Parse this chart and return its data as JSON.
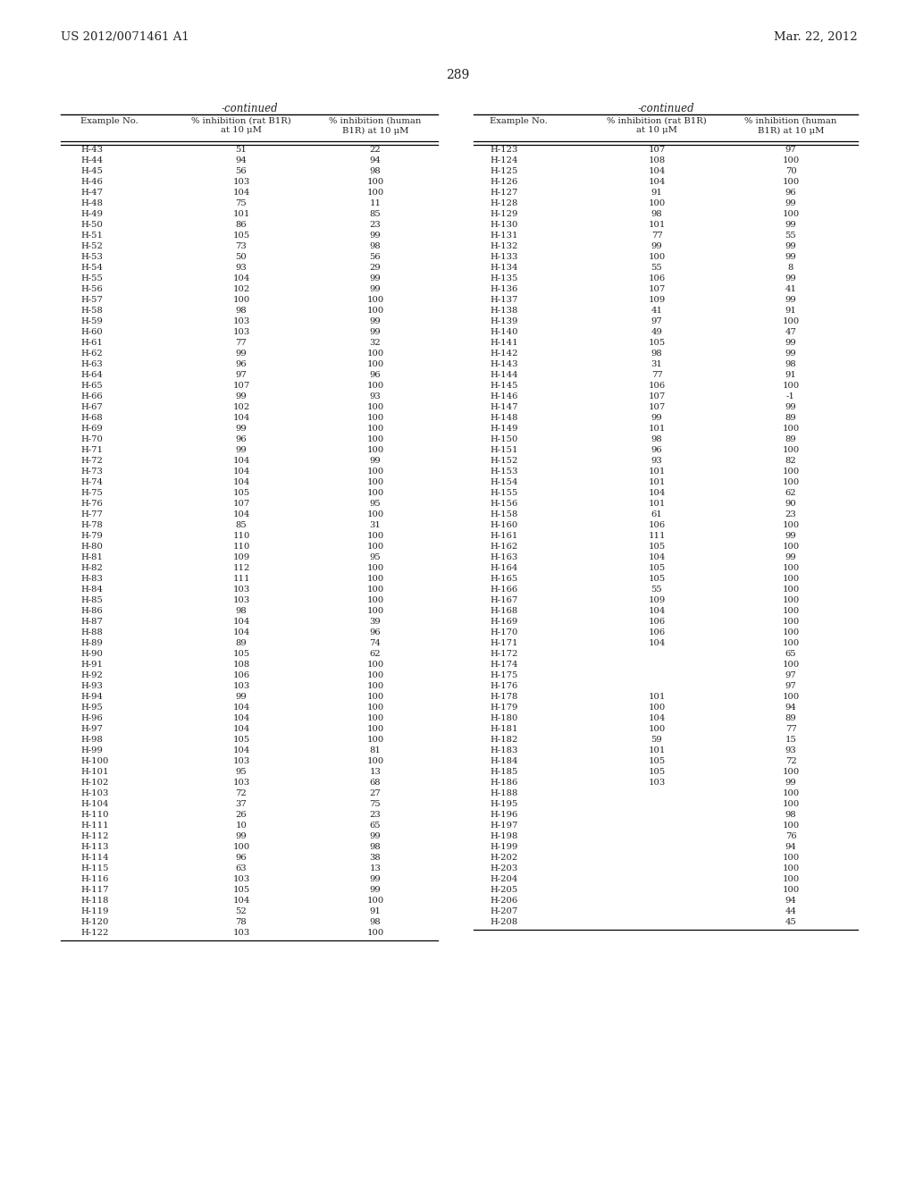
{
  "patent_left": "US 2012/0071461 A1",
  "patent_right": "Mar. 22, 2012",
  "page_number": "289",
  "continued_label": "-continued",
  "col_headers_line1": [
    "Example No.",
    "% inhibition (rat B1R)",
    "% inhibition (human"
  ],
  "col_headers_line2": [
    "",
    "at 10 μM",
    "B1R) at 10 μM"
  ],
  "left_table": [
    [
      "H-43",
      "51",
      "22"
    ],
    [
      "H-44",
      "94",
      "94"
    ],
    [
      "H-45",
      "56",
      "98"
    ],
    [
      "H-46",
      "103",
      "100"
    ],
    [
      "H-47",
      "104",
      "100"
    ],
    [
      "H-48",
      "75",
      "11"
    ],
    [
      "H-49",
      "101",
      "85"
    ],
    [
      "H-50",
      "86",
      "23"
    ],
    [
      "H-51",
      "105",
      "99"
    ],
    [
      "H-52",
      "73",
      "98"
    ],
    [
      "H-53",
      "50",
      "56"
    ],
    [
      "H-54",
      "93",
      "29"
    ],
    [
      "H-55",
      "104",
      "99"
    ],
    [
      "H-56",
      "102",
      "99"
    ],
    [
      "H-57",
      "100",
      "100"
    ],
    [
      "H-58",
      "98",
      "100"
    ],
    [
      "H-59",
      "103",
      "99"
    ],
    [
      "H-60",
      "103",
      "99"
    ],
    [
      "H-61",
      "77",
      "32"
    ],
    [
      "H-62",
      "99",
      "100"
    ],
    [
      "H-63",
      "96",
      "100"
    ],
    [
      "H-64",
      "97",
      "96"
    ],
    [
      "H-65",
      "107",
      "100"
    ],
    [
      "H-66",
      "99",
      "93"
    ],
    [
      "H-67",
      "102",
      "100"
    ],
    [
      "H-68",
      "104",
      "100"
    ],
    [
      "H-69",
      "99",
      "100"
    ],
    [
      "H-70",
      "96",
      "100"
    ],
    [
      "H-71",
      "99",
      "100"
    ],
    [
      "H-72",
      "104",
      "99"
    ],
    [
      "H-73",
      "104",
      "100"
    ],
    [
      "H-74",
      "104",
      "100"
    ],
    [
      "H-75",
      "105",
      "100"
    ],
    [
      "H-76",
      "107",
      "95"
    ],
    [
      "H-77",
      "104",
      "100"
    ],
    [
      "H-78",
      "85",
      "31"
    ],
    [
      "H-79",
      "110",
      "100"
    ],
    [
      "H-80",
      "110",
      "100"
    ],
    [
      "H-81",
      "109",
      "95"
    ],
    [
      "H-82",
      "112",
      "100"
    ],
    [
      "H-83",
      "111",
      "100"
    ],
    [
      "H-84",
      "103",
      "100"
    ],
    [
      "H-85",
      "103",
      "100"
    ],
    [
      "H-86",
      "98",
      "100"
    ],
    [
      "H-87",
      "104",
      "39"
    ],
    [
      "H-88",
      "104",
      "96"
    ],
    [
      "H-89",
      "89",
      "74"
    ],
    [
      "H-90",
      "105",
      "62"
    ],
    [
      "H-91",
      "108",
      "100"
    ],
    [
      "H-92",
      "106",
      "100"
    ],
    [
      "H-93",
      "103",
      "100"
    ],
    [
      "H-94",
      "99",
      "100"
    ],
    [
      "H-95",
      "104",
      "100"
    ],
    [
      "H-96",
      "104",
      "100"
    ],
    [
      "H-97",
      "104",
      "100"
    ],
    [
      "H-98",
      "105",
      "100"
    ],
    [
      "H-99",
      "104",
      "81"
    ],
    [
      "H-100",
      "103",
      "100"
    ],
    [
      "H-101",
      "95",
      "13"
    ],
    [
      "H-102",
      "103",
      "68"
    ],
    [
      "H-103",
      "72",
      "27"
    ],
    [
      "H-104",
      "37",
      "75"
    ],
    [
      "H-110",
      "26",
      "23"
    ],
    [
      "H-111",
      "10",
      "65"
    ],
    [
      "H-112",
      "99",
      "99"
    ],
    [
      "H-113",
      "100",
      "98"
    ],
    [
      "H-114",
      "96",
      "38"
    ],
    [
      "H-115",
      "63",
      "13"
    ],
    [
      "H-116",
      "103",
      "99"
    ],
    [
      "H-117",
      "105",
      "99"
    ],
    [
      "H-118",
      "104",
      "100"
    ],
    [
      "H-119",
      "52",
      "91"
    ],
    [
      "H-120",
      "78",
      "98"
    ],
    [
      "H-122",
      "103",
      "100"
    ]
  ],
  "right_table": [
    [
      "H-123",
      "107",
      "97"
    ],
    [
      "H-124",
      "108",
      "100"
    ],
    [
      "H-125",
      "104",
      "70"
    ],
    [
      "H-126",
      "104",
      "100"
    ],
    [
      "H-127",
      "91",
      "96"
    ],
    [
      "H-128",
      "100",
      "99"
    ],
    [
      "H-129",
      "98",
      "100"
    ],
    [
      "H-130",
      "101",
      "99"
    ],
    [
      "H-131",
      "77",
      "55"
    ],
    [
      "H-132",
      "99",
      "99"
    ],
    [
      "H-133",
      "100",
      "99"
    ],
    [
      "H-134",
      "55",
      "8"
    ],
    [
      "H-135",
      "106",
      "99"
    ],
    [
      "H-136",
      "107",
      "41"
    ],
    [
      "H-137",
      "109",
      "99"
    ],
    [
      "H-138",
      "41",
      "91"
    ],
    [
      "H-139",
      "97",
      "100"
    ],
    [
      "H-140",
      "49",
      "47"
    ],
    [
      "H-141",
      "105",
      "99"
    ],
    [
      "H-142",
      "98",
      "99"
    ],
    [
      "H-143",
      "31",
      "98"
    ],
    [
      "H-144",
      "77",
      "91"
    ],
    [
      "H-145",
      "106",
      "100"
    ],
    [
      "H-146",
      "107",
      "-1"
    ],
    [
      "H-147",
      "107",
      "99"
    ],
    [
      "H-148",
      "99",
      "89"
    ],
    [
      "H-149",
      "101",
      "100"
    ],
    [
      "H-150",
      "98",
      "89"
    ],
    [
      "H-151",
      "96",
      "100"
    ],
    [
      "H-152",
      "93",
      "82"
    ],
    [
      "H-153",
      "101",
      "100"
    ],
    [
      "H-154",
      "101",
      "100"
    ],
    [
      "H-155",
      "104",
      "62"
    ],
    [
      "H-156",
      "101",
      "90"
    ],
    [
      "H-158",
      "61",
      "23"
    ],
    [
      "H-160",
      "106",
      "100"
    ],
    [
      "H-161",
      "111",
      "99"
    ],
    [
      "H-162",
      "105",
      "100"
    ],
    [
      "H-163",
      "104",
      "99"
    ],
    [
      "H-164",
      "105",
      "100"
    ],
    [
      "H-165",
      "105",
      "100"
    ],
    [
      "H-166",
      "55",
      "100"
    ],
    [
      "H-167",
      "109",
      "100"
    ],
    [
      "H-168",
      "104",
      "100"
    ],
    [
      "H-169",
      "106",
      "100"
    ],
    [
      "H-170",
      "106",
      "100"
    ],
    [
      "H-171",
      "104",
      "100"
    ],
    [
      "H-172",
      "",
      "65"
    ],
    [
      "H-174",
      "",
      "100"
    ],
    [
      "H-175",
      "",
      "97"
    ],
    [
      "H-176",
      "",
      "97"
    ],
    [
      "H-178",
      "101",
      "100"
    ],
    [
      "H-179",
      "100",
      "94"
    ],
    [
      "H-180",
      "104",
      "89"
    ],
    [
      "H-181",
      "100",
      "77"
    ],
    [
      "H-182",
      "59",
      "15"
    ],
    [
      "H-183",
      "101",
      "93"
    ],
    [
      "H-184",
      "105",
      "72"
    ],
    [
      "H-185",
      "105",
      "100"
    ],
    [
      "H-186",
      "103",
      "99"
    ],
    [
      "H-188",
      "",
      "100"
    ],
    [
      "H-195",
      "",
      "100"
    ],
    [
      "H-196",
      "",
      "98"
    ],
    [
      "H-197",
      "",
      "100"
    ],
    [
      "H-198",
      "",
      "76"
    ],
    [
      "H-199",
      "",
      "94"
    ],
    [
      "H-202",
      "",
      "100"
    ],
    [
      "H-203",
      "",
      "100"
    ],
    [
      "H-204",
      "",
      "100"
    ],
    [
      "H-205",
      "",
      "100"
    ],
    [
      "H-206",
      "",
      "94"
    ],
    [
      "H-207",
      "",
      "44"
    ],
    [
      "H-208",
      "",
      "45"
    ]
  ]
}
